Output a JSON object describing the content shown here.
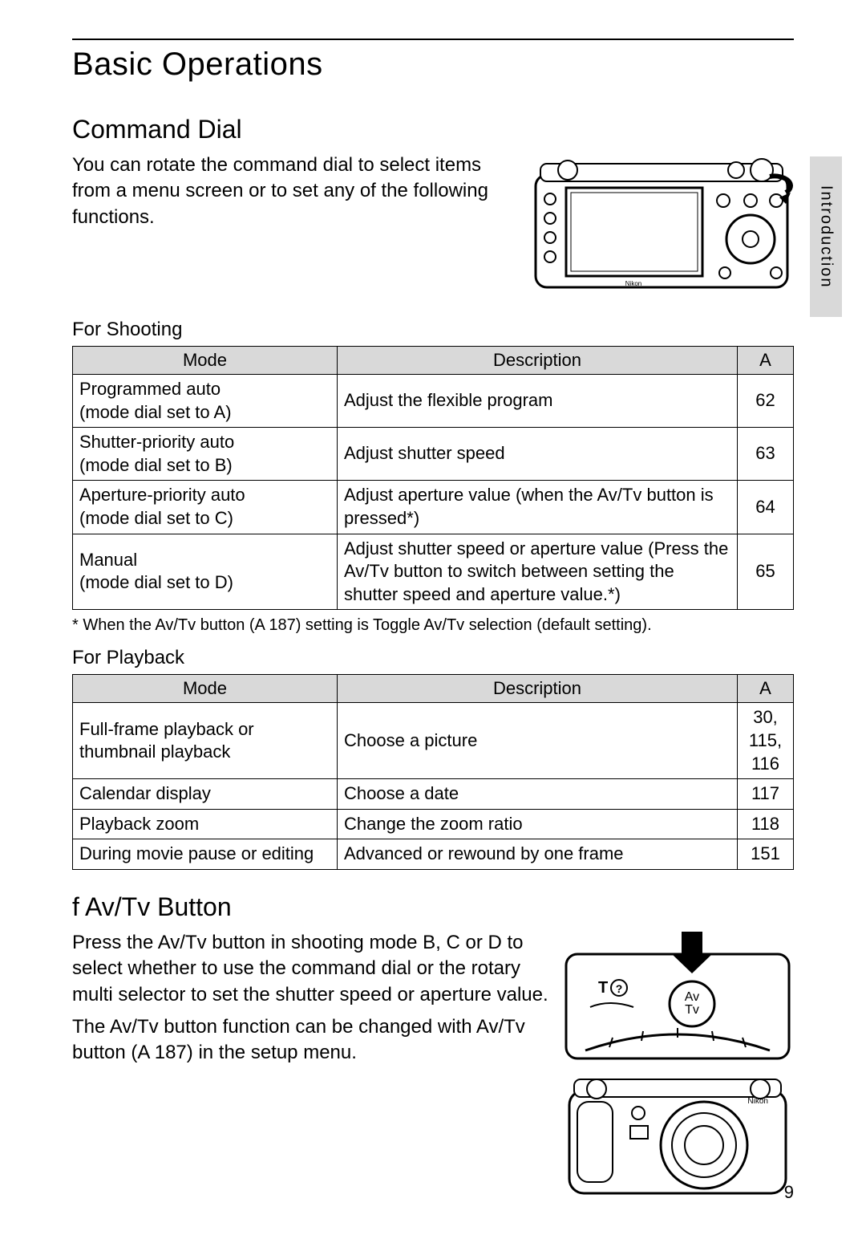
{
  "page_number": "9",
  "side_tab": "Introduction",
  "section_title": "Basic Operations",
  "command_dial": {
    "heading": "Command Dial",
    "intro": "You can rotate the command dial to select items from a menu screen or to set any of the following functions."
  },
  "shooting": {
    "title": "For Shooting",
    "head_mode": "Mode",
    "head_desc": "Description",
    "head_ref": "A",
    "rows": [
      {
        "mode": "Programmed auto\n(mode dial set to A)",
        "desc": "Adjust the flexible program",
        "ref": "62"
      },
      {
        "mode": "Shutter-priority auto\n(mode dial set to B)",
        "desc": "Adjust shutter speed",
        "ref": "63"
      },
      {
        "mode": "Aperture-priority auto\n(mode dial set to C)",
        "desc": "Adjust aperture value (when the Av/Tv button is pressed*)",
        "ref": "64"
      },
      {
        "mode": "Manual\n(mode dial set to D)",
        "desc": "Adjust shutter speed or aperture value (Press the Av/Tv button to switch between setting the shutter speed and aperture value.*)",
        "ref": "65"
      }
    ],
    "footnote": "*  When the Av/Tv button (A 187) setting is Toggle Av/Tv selection (default setting)."
  },
  "playback": {
    "title": "For Playback",
    "head_mode": "Mode",
    "head_desc": "Description",
    "head_ref": "A",
    "rows": [
      {
        "mode": "Full-frame playback or thumbnail playback",
        "desc": "Choose a picture",
        "ref": "30, 115, 116"
      },
      {
        "mode": "Calendar display",
        "desc": "Choose a date",
        "ref": "117"
      },
      {
        "mode": "Playback zoom",
        "desc": "Change the zoom ratio",
        "ref": "118"
      },
      {
        "mode": "During movie pause or editing",
        "desc": "Advanced or rewound by one frame",
        "ref": "151"
      }
    ]
  },
  "avtv": {
    "heading": "f  Av/Tv Button",
    "p1": "Press the Av/Tv button in shooting mode B, C or D to select whether to use the command dial or the rotary multi selector to set the shutter speed or aperture value.",
    "p2": "The Av/Tv button function can be changed with Av/Tv button (A 187) in the setup menu.",
    "btn_label_av": "Av",
    "btn_label_tv": "Tv"
  }
}
